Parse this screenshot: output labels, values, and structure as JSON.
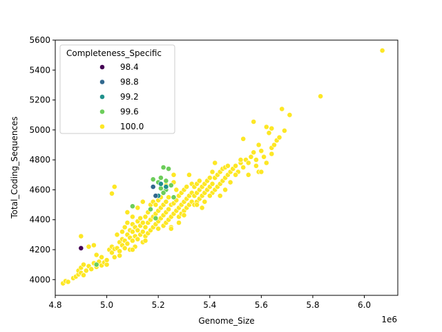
{
  "chart_data": {
    "type": "scatter",
    "title": "",
    "xlabel": "Genome_Size",
    "ylabel": "Total_Coding_Sequences",
    "x_offset_label": "1e6",
    "xlim": [
      4.8,
      6.13
    ],
    "ylim": [
      3895,
      5600
    ],
    "x_ticks": [
      4.8,
      5.0,
      5.2,
      5.4,
      5.6,
      5.8,
      6.0
    ],
    "x_tick_labels": [
      "4.8",
      "5.0",
      "5.2",
      "5.4",
      "5.6",
      "5.8",
      "6.0"
    ],
    "y_ticks": [
      4000,
      4200,
      4400,
      4600,
      4800,
      5000,
      5200,
      5400,
      5600
    ],
    "y_tick_labels": [
      "4000",
      "4200",
      "4400",
      "4600",
      "4800",
      "5000",
      "5200",
      "5400",
      "5600"
    ],
    "grid": false,
    "legend": {
      "title": "Completeness_Specific",
      "placement": "upper-left",
      "entries": [
        {
          "label": "98.4",
          "color": "#440154"
        },
        {
          "label": "98.8",
          "color": "#31688e"
        },
        {
          "label": "99.2",
          "color": "#21918c"
        },
        {
          "label": "99.6",
          "color": "#6ccd5a"
        },
        {
          "label": "100.0",
          "color": "#fde725"
        }
      ]
    },
    "series": [
      {
        "name": "98.4",
        "color": "#440154",
        "points": [
          [
            4.9,
            4210
          ]
        ]
      },
      {
        "name": "98.8",
        "color": "#31688e",
        "points": [
          [
            5.18,
            4620
          ],
          [
            5.19,
            4560
          ]
        ]
      },
      {
        "name": "99.2",
        "color": "#21918c",
        "points": [
          [
            5.2,
            4560
          ],
          [
            5.23,
            4620
          ],
          [
            5.21,
            4640
          ]
        ]
      },
      {
        "name": "99.6",
        "color": "#6ccd5a",
        "points": [
          [
            5.22,
            4750
          ],
          [
            5.24,
            4740
          ],
          [
            5.18,
            4670
          ],
          [
            5.21,
            4680
          ],
          [
            5.23,
            4660
          ],
          [
            5.21,
            4610
          ],
          [
            5.25,
            4630
          ],
          [
            5.2,
            4650
          ],
          [
            5.23,
            4600
          ],
          [
            5.1,
            4490
          ],
          [
            5.17,
            4470
          ],
          [
            5.19,
            4410
          ],
          [
            5.26,
            4550
          ],
          [
            4.96,
            4100
          ],
          [
            5.22,
            4580
          ]
        ]
      },
      {
        "name": "100.0",
        "color": "#fde725",
        "points": [
          [
            4.83,
            3975
          ],
          [
            4.84,
            3990
          ],
          [
            4.85,
            3985
          ],
          [
            4.87,
            4010
          ],
          [
            4.88,
            4020
          ],
          [
            4.89,
            4035
          ],
          [
            4.89,
            4060
          ],
          [
            4.9,
            4045
          ],
          [
            4.9,
            4080
          ],
          [
            4.91,
            4030
          ],
          [
            4.91,
            4100
          ],
          [
            4.92,
            4060
          ],
          [
            4.93,
            4090
          ],
          [
            4.94,
            4070
          ],
          [
            4.95,
            4110
          ],
          [
            4.96,
            4085
          ],
          [
            4.97,
            4120
          ],
          [
            4.98,
            4095
          ],
          [
            4.99,
            4115
          ],
          [
            5.0,
            4100
          ],
          [
            4.9,
            4290
          ],
          [
            4.93,
            4220
          ],
          [
            4.95,
            4230
          ],
          [
            4.96,
            4165
          ],
          [
            5.01,
            4200
          ],
          [
            5.02,
            4180
          ],
          [
            5.02,
            4220
          ],
          [
            5.03,
            4150
          ],
          [
            5.03,
            4205
          ],
          [
            5.04,
            4210
          ],
          [
            5.04,
            4300
          ],
          [
            5.05,
            4190
          ],
          [
            5.05,
            4250
          ],
          [
            5.06,
            4230
          ],
          [
            5.06,
            4270
          ],
          [
            5.06,
            4320
          ],
          [
            5.07,
            4210
          ],
          [
            5.07,
            4260
          ],
          [
            5.07,
            4350
          ],
          [
            5.08,
            4240
          ],
          [
            5.08,
            4300
          ],
          [
            5.08,
            4380
          ],
          [
            5.09,
            4200
          ],
          [
            5.09,
            4280
          ],
          [
            5.09,
            4330
          ],
          [
            5.1,
            4260
          ],
          [
            5.1,
            4320
          ],
          [
            5.1,
            4370
          ],
          [
            5.1,
            4420
          ],
          [
            5.11,
            4220
          ],
          [
            5.11,
            4290
          ],
          [
            5.11,
            4350
          ],
          [
            5.12,
            4270
          ],
          [
            5.12,
            4330
          ],
          [
            5.12,
            4390
          ],
          [
            5.13,
            4300
          ],
          [
            5.13,
            4360
          ],
          [
            5.13,
            4410
          ],
          [
            5.14,
            4250
          ],
          [
            5.14,
            4320
          ],
          [
            5.14,
            4380
          ],
          [
            5.15,
            4290
          ],
          [
            5.15,
            4350
          ],
          [
            5.15,
            4420
          ],
          [
            5.16,
            4310
          ],
          [
            5.16,
            4380
          ],
          [
            5.16,
            4450
          ],
          [
            5.17,
            4330
          ],
          [
            5.17,
            4400
          ],
          [
            5.17,
            4500
          ],
          [
            5.18,
            4350
          ],
          [
            5.18,
            4420
          ],
          [
            5.18,
            4520
          ],
          [
            5.19,
            4370
          ],
          [
            5.19,
            4440
          ],
          [
            5.19,
            4500
          ],
          [
            5.2,
            4390
          ],
          [
            5.2,
            4460
          ],
          [
            5.2,
            4530
          ],
          [
            5.21,
            4410
          ],
          [
            5.21,
            4480
          ],
          [
            5.21,
            4550
          ],
          [
            5.22,
            4360
          ],
          [
            5.22,
            4430
          ],
          [
            5.22,
            4500
          ],
          [
            5.23,
            4380
          ],
          [
            5.23,
            4450
          ],
          [
            5.23,
            4520
          ],
          [
            5.24,
            4400
          ],
          [
            5.24,
            4470
          ],
          [
            5.24,
            4550
          ],
          [
            5.25,
            4350
          ],
          [
            5.25,
            4420
          ],
          [
            5.25,
            4500
          ],
          [
            5.26,
            4440
          ],
          [
            5.26,
            4510
          ],
          [
            5.26,
            4700
          ],
          [
            5.27,
            4460
          ],
          [
            5.27,
            4530
          ],
          [
            5.28,
            4420
          ],
          [
            5.28,
            4480
          ],
          [
            5.28,
            4560
          ],
          [
            5.29,
            4440
          ],
          [
            5.29,
            4500
          ],
          [
            5.29,
            4580
          ],
          [
            5.3,
            4460
          ],
          [
            5.3,
            4520
          ],
          [
            5.3,
            4600
          ],
          [
            5.31,
            4480
          ],
          [
            5.31,
            4540
          ],
          [
            5.31,
            4620
          ],
          [
            5.32,
            4500
          ],
          [
            5.32,
            4560
          ],
          [
            5.32,
            4700
          ],
          [
            5.33,
            4520
          ],
          [
            5.33,
            4580
          ],
          [
            5.33,
            4640
          ],
          [
            5.34,
            4500
          ],
          [
            5.34,
            4560
          ],
          [
            5.34,
            4620
          ],
          [
            5.35,
            4520
          ],
          [
            5.35,
            4580
          ],
          [
            5.35,
            4640
          ],
          [
            5.36,
            4540
          ],
          [
            5.36,
            4600
          ],
          [
            5.36,
            4660
          ],
          [
            5.37,
            4560
          ],
          [
            5.37,
            4620
          ],
          [
            5.38,
            4580
          ],
          [
            5.38,
            4640
          ],
          [
            5.39,
            4600
          ],
          [
            5.39,
            4660
          ],
          [
            5.4,
            4620
          ],
          [
            5.4,
            4680
          ],
          [
            5.41,
            4580
          ],
          [
            5.41,
            4640
          ],
          [
            5.41,
            4720
          ],
          [
            5.42,
            4600
          ],
          [
            5.42,
            4680
          ],
          [
            5.43,
            4620
          ],
          [
            5.43,
            4700
          ],
          [
            5.44,
            4640
          ],
          [
            5.44,
            4720
          ],
          [
            5.45,
            4660
          ],
          [
            5.45,
            4740
          ],
          [
            5.46,
            4680
          ],
          [
            5.46,
            4750
          ],
          [
            5.47,
            4700
          ],
          [
            5.47,
            4760
          ],
          [
            5.48,
            4720
          ],
          [
            5.49,
            4740
          ],
          [
            5.5,
            4760
          ],
          [
            5.51,
            4720
          ],
          [
            5.52,
            4780
          ],
          [
            5.53,
            4750
          ],
          [
            5.53,
            4940
          ],
          [
            5.54,
            4800
          ],
          [
            5.55,
            4780
          ],
          [
            5.56,
            4820
          ],
          [
            5.57,
            4850
          ],
          [
            5.57,
            5055
          ],
          [
            5.58,
            4800
          ],
          [
            5.59,
            4720
          ],
          [
            5.6,
            4860
          ],
          [
            5.61,
            4820
          ],
          [
            5.62,
            5020
          ],
          [
            5.63,
            4980
          ],
          [
            5.64,
            4880
          ],
          [
            5.64,
            5010
          ],
          [
            5.65,
            4900
          ],
          [
            5.66,
            4930
          ],
          [
            5.67,
            4950
          ],
          [
            5.68,
            5140
          ],
          [
            5.69,
            4995
          ],
          [
            5.71,
            5100
          ],
          [
            5.83,
            5225
          ],
          [
            6.07,
            5530
          ],
          [
            5.03,
            4620
          ],
          [
            5.02,
            4575
          ],
          [
            5.14,
            4520
          ],
          [
            5.08,
            4450
          ],
          [
            5.12,
            4480
          ],
          [
            5.26,
            4650
          ],
          [
            5.27,
            4600
          ],
          [
            5.23,
            4630
          ],
          [
            5.35,
            4500
          ],
          [
            5.37,
            4480
          ],
          [
            5.38,
            4520
          ],
          [
            5.44,
            4560
          ],
          [
            5.46,
            4600
          ],
          [
            5.48,
            4650
          ],
          [
            5.5,
            4700
          ],
          [
            5.55,
            4700
          ],
          [
            5.58,
            4760
          ],
          [
            5.6,
            4720
          ],
          [
            5.62,
            4780
          ],
          [
            5.64,
            4840
          ],
          [
            5.59,
            4900
          ],
          [
            5.52,
            4800
          ],
          [
            5.42,
            4780
          ],
          [
            5.4,
            4560
          ],
          [
            5.3,
            4430
          ],
          [
            5.28,
            4380
          ],
          [
            5.25,
            4340
          ],
          [
            5.2,
            4340
          ],
          [
            5.15,
            4260
          ],
          [
            5.1,
            4200
          ],
          [
            5.05,
            4160
          ],
          [
            5.0,
            4130
          ],
          [
            4.98,
            4150
          ]
        ]
      }
    ]
  }
}
